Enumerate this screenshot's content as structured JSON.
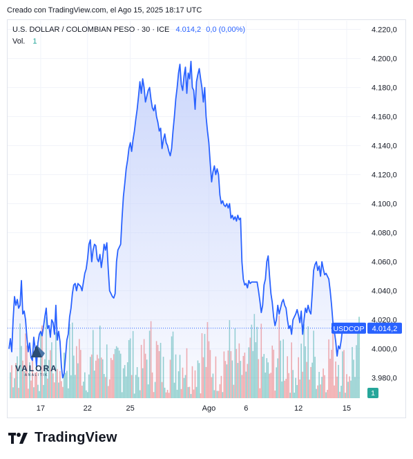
{
  "header": {
    "created_by": "Creado con TradingView.com, el Ago 15, 2025 18:17 UTC"
  },
  "legend": {
    "symbol": "U.S. DOLLAR / COLOMBIAN PESO · 30 · ICE",
    "last": "4.014,2",
    "change": "0,0 (0,00%)",
    "volume_label": "Vol.",
    "volume_value": "1"
  },
  "badges": {
    "ticker": "USDCOP",
    "price": "4.014,2",
    "volume": "1"
  },
  "watermark": {
    "name": "VALORA",
    "sub": "ANALITIK"
  },
  "footer": {
    "brand": "TradingView"
  },
  "colors": {
    "line": "#2962ff",
    "area_top": "#c3d0fb",
    "vol_up": "#26a69a",
    "vol_down": "#ef5350",
    "grid": "#f0f3fa"
  },
  "chart_data": {
    "type": "area",
    "ylim": [
      3966,
      4226
    ],
    "ytick_labels": [
      "3.980,0",
      "4.000,0",
      "4.020,0",
      "4.040,0",
      "4.060,0",
      "4.080,0",
      "4.100,0",
      "4.120,0",
      "4.140,0",
      "4.160,0",
      "4.180,0",
      "4.200,0",
      "4.220,0"
    ],
    "ytick_values": [
      3980,
      4000,
      4020,
      4040,
      4060,
      4080,
      4100,
      4120,
      4140,
      4160,
      4180,
      4200,
      4220
    ],
    "xtick_labels": [
      "17",
      "22",
      "25",
      "Ago",
      "6",
      "12",
      "15"
    ],
    "xtick_index": [
      23,
      57,
      88,
      145,
      172,
      210,
      245
    ],
    "x_count": 255,
    "last_price": 4014.2,
    "series": [
      {
        "values": [
          4000,
          4007,
          3998,
          4020,
          4036,
          4030,
          4034,
          4028,
          4030,
          4047,
          4024,
          4026,
          4020,
          4008,
          3998,
          4004,
          3994,
          3992,
          4008,
          4000,
          3988,
          4004,
          4010,
          4012,
          4009,
          4015,
          4022,
          4028,
          4014,
          4016,
          4008,
          4020,
          4018,
          4010,
          4030,
          4006,
          4012,
          4005,
          3988,
          3980,
          3983,
          3994,
          4006,
          4010,
          4022,
          4028,
          4038,
          4044,
          4045,
          4040,
          4045,
          4044,
          4043,
          4040,
          4046,
          4052,
          4055,
          4062,
          4072,
          4075,
          4060,
          4068,
          4072,
          4071,
          4062,
          4060,
          4065,
          4056,
          4063,
          4072,
          4068,
          4073,
          4055,
          4040,
          4038,
          4036,
          4035,
          4038,
          4060,
          4068,
          4070,
          4072,
          4090,
          4105,
          4114,
          4124,
          4130,
          4138,
          4142,
          4136,
          4144,
          4150,
          4158,
          4165,
          4174,
          4184,
          4176,
          4186,
          4180,
          4170,
          4174,
          4178,
          4180,
          4172,
          4166,
          4164,
          4168,
          4160,
          4156,
          4150,
          4152,
          4138,
          4144,
          4148,
          4142,
          4140,
          4136,
          4133,
          4138,
          4150,
          4160,
          4172,
          4180,
          4190,
          4196,
          4182,
          4178,
          4188,
          4194,
          4176,
          4190,
          4186,
          4198,
          4180,
          4178,
          4165,
          4184,
          4189,
          4193,
          4186,
          4180,
          4170,
          4180,
          4160,
          4150,
          4142,
          4128,
          4115,
          4122,
          4126,
          4120,
          4124,
          4120,
          4106,
          4100,
          4102,
          4099,
          4098,
          4100,
          4097,
          4100,
          4090,
          4092,
          4089,
          4091,
          4088,
          4092,
          4089,
          4090,
          4060,
          4048,
          4044,
          4045,
          4042,
          4047,
          4045,
          4046,
          4046,
          4046,
          4046,
          4046,
          4040,
          4033,
          4025,
          4030,
          4044,
          4048,
          4060,
          4064,
          4050,
          4038,
          4032,
          4022,
          4016,
          4020,
          4030,
          4024,
          4028,
          4032,
          4034,
          4030,
          4028,
          4020,
          4014,
          4016,
          4010,
          4020,
          4022,
          4024,
          4027,
          4023,
          4018,
          4026,
          4010,
          4020,
          4028,
          4025,
          4030,
          4026,
          4024,
          4038,
          4054,
          4058,
          4060,
          4054,
          4057,
          4050,
          4060,
          4055,
          4051,
          4052,
          4050,
          4048,
          4040,
          4030,
          4018,
          4012,
          4005,
          3995,
          4002,
          4000,
          4006,
          4014,
          4012,
          4014,
          4013,
          4014.2,
          4014,
          4014.2,
          4014.2,
          4014.2,
          4014.2,
          4014.2,
          4014.2,
          4014.2
        ]
      }
    ]
  }
}
